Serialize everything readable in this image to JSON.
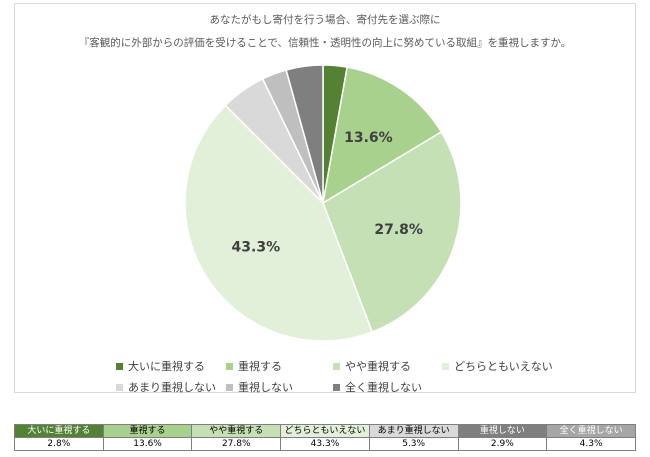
{
  "title_line1": "あなたがもし寄付を行う場合、寄付先を選ぶ際に",
  "title_line2": "『客観的に外部からの評価を受けることで、信頼性・透明性の向上に努めている取組』を重視しますか。",
  "chart_data": {
    "type": "pie",
    "categories": [
      "大いに重視する",
      "重視する",
      "やや重視する",
      "どちらともいえない",
      "あまり重視しない",
      "重視しない",
      "全く重視しない"
    ],
    "values": [
      2.8,
      13.6,
      27.8,
      43.3,
      5.3,
      2.9,
      4.3
    ],
    "value_labels": [
      "",
      "13.6%",
      "27.8%",
      "43.3%",
      "",
      "",
      ""
    ],
    "colors": [
      "#548235",
      "#a9d18e",
      "#c5e0b4",
      "#e2f0d9",
      "#d9d9d9",
      "#bfbfbf",
      "#7f7f7f"
    ],
    "start_angle": "12 o'clock",
    "direction": "clockwise",
    "legend_position": "bottom"
  },
  "table": {
    "headers": [
      "大いに重視する",
      "重視する",
      "やや重視する",
      "どちらともいえない",
      "あまり重視しない",
      "重視しない",
      "全く重視しない"
    ],
    "values": [
      "2.8%",
      "13.6%",
      "27.8%",
      "43.3%",
      "5.3%",
      "2.9%",
      "4.3%"
    ],
    "header_colors": [
      "#548235",
      "#a9d18e",
      "#c5e0b4",
      "#e2f0d9",
      "#d9d9d9",
      "#7f7f7f",
      "#a6a6a6"
    ],
    "header_text_colors": [
      "#ffffff",
      "#000000",
      "#000000",
      "#000000",
      "#000000",
      "#ffffff",
      "#ffffff"
    ]
  }
}
